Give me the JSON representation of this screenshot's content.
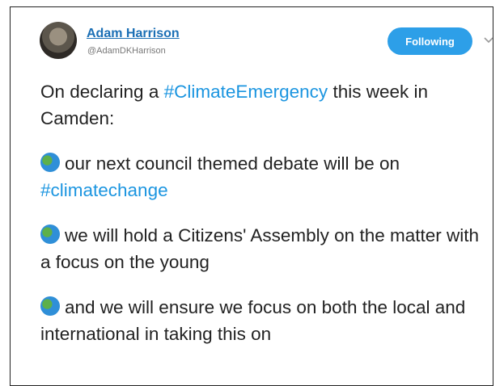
{
  "tweet": {
    "author": {
      "name": "Adam Harrison",
      "handle": "@AdamDKHarrison"
    },
    "follow_button": "Following",
    "paragraphs": [
      {
        "segments": [
          {
            "text": "On declaring a"
          },
          {
            "text": "#ClimateEmergency",
            "hashtag": true
          },
          {
            "text": "this week in Camden:"
          }
        ]
      },
      {
        "segments": [
          {
            "text": "our next council themed debate will be on"
          },
          {
            "text": "#climatechange",
            "hashtag": true
          }
        ]
      },
      {
        "segments": [
          {
            "text": "we will hold a Citizens' Assembly on the matter with a focus on the young"
          }
        ]
      },
      {
        "segments": [
          {
            "text": "and we will ensure we focus on both the local and international in taking this on"
          }
        ]
      }
    ]
  }
}
